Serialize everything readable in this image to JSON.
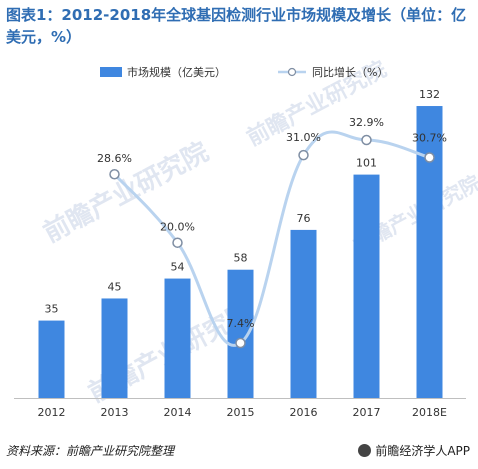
{
  "title": "图表1：2012-2018年全球基因检测行业市场规模及增长（单位：亿美元，%）",
  "footer": {
    "source": "资料来源：前瞻产业研究院整理",
    "brand": "前瞻经济学人APP"
  },
  "watermark": "前瞻产业研究院",
  "colors": {
    "bar": "#3f87e0",
    "line": "#b9d3ef",
    "marker_fill": "#ffffff",
    "marker_stroke": "#7f8ea3",
    "label_text": "#333333",
    "title": "#2f6db3"
  },
  "chart_data": {
    "type": "bar",
    "categories": [
      "2012",
      "2013",
      "2014",
      "2015",
      "2016",
      "2017",
      "2018E"
    ],
    "series": [
      {
        "name": "市场规模（亿美元）",
        "type": "bar",
        "values": [
          35,
          45,
          54,
          58,
          76,
          101,
          132
        ],
        "labels": [
          "35",
          "45",
          "54",
          "58",
          "76",
          "101",
          "132"
        ]
      },
      {
        "name": "同比增长（%）",
        "type": "line",
        "smooth": true,
        "values": [
          null,
          28.6,
          20.0,
          7.4,
          31.0,
          32.9,
          30.7
        ],
        "labels": [
          "",
          "28.6%",
          "20.0%",
          "7.4%",
          "31.0%",
          "32.9%",
          "30.7%"
        ]
      }
    ],
    "legend_position": "top-center",
    "grid": false
  }
}
